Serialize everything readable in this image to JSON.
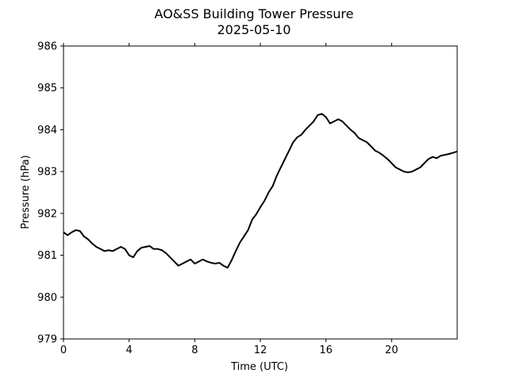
{
  "chart_data": {
    "type": "line",
    "title": "AO&SS Building Tower Pressure",
    "subtitle": "2025-05-10",
    "xlabel": "Time (UTC)",
    "ylabel": "Pressure (hPa)",
    "xlim": [
      0,
      24
    ],
    "ylim": [
      979,
      986
    ],
    "xticks": [
      0,
      4,
      8,
      12,
      16,
      20
    ],
    "xtick_labels": [
      "0",
      "4",
      "8",
      "12",
      "16",
      "20"
    ],
    "yticks": [
      979,
      980,
      981,
      982,
      983,
      984,
      985,
      986
    ],
    "ytick_labels": [
      "979",
      "980",
      "981",
      "982",
      "983",
      "984",
      "985",
      "986"
    ],
    "grid": false,
    "legend": "none",
    "series": [
      {
        "color": "#000000",
        "x": [
          0,
          0.25,
          0.5,
          0.75,
          1,
          1.25,
          1.5,
          1.75,
          2,
          2.25,
          2.5,
          2.75,
          3,
          3.25,
          3.5,
          3.75,
          4,
          4.25,
          4.5,
          4.75,
          5,
          5.25,
          5.5,
          5.75,
          6,
          6.25,
          6.5,
          6.75,
          7,
          7.25,
          7.5,
          7.75,
          8,
          8.25,
          8.5,
          8.75,
          9,
          9.25,
          9.5,
          9.75,
          10,
          10.25,
          10.5,
          10.75,
          11,
          11.25,
          11.5,
          11.75,
          12,
          12.25,
          12.5,
          12.75,
          13,
          13.25,
          13.5,
          13.75,
          14,
          14.25,
          14.5,
          14.75,
          15,
          15.25,
          15.5,
          15.75,
          16,
          16.25,
          16.5,
          16.75,
          17,
          17.25,
          17.5,
          17.75,
          18,
          18.25,
          18.5,
          18.75,
          19,
          19.25,
          19.5,
          19.75,
          20,
          20.25,
          20.5,
          20.75,
          21,
          21.25,
          21.5,
          21.75,
          22,
          22.25,
          22.5,
          22.75,
          23,
          23.25,
          23.5,
          23.75,
          24
        ],
        "y": [
          981.55,
          981.48,
          981.55,
          981.6,
          981.58,
          981.45,
          981.38,
          981.28,
          981.2,
          981.15,
          981.1,
          981.12,
          981.1,
          981.15,
          981.2,
          981.15,
          981.0,
          980.95,
          981.1,
          981.18,
          981.2,
          981.22,
          981.15,
          981.15,
          981.12,
          981.05,
          980.95,
          980.85,
          980.75,
          980.8,
          980.85,
          980.9,
          980.8,
          980.85,
          980.9,
          980.85,
          980.82,
          980.8,
          980.82,
          980.75,
          980.7,
          980.88,
          981.1,
          981.3,
          981.45,
          981.6,
          981.85,
          981.98,
          982.15,
          982.3,
          982.5,
          982.65,
          982.9,
          983.1,
          983.3,
          983.5,
          983.7,
          983.82,
          983.88,
          984.0,
          984.1,
          984.2,
          984.35,
          984.38,
          984.3,
          984.15,
          984.2,
          984.25,
          984.2,
          984.1,
          984.0,
          983.92,
          983.8,
          983.75,
          983.7,
          983.6,
          983.5,
          983.45,
          983.38,
          983.3,
          983.2,
          983.1,
          983.05,
          983.0,
          982.98,
          983.0,
          983.05,
          983.1,
          983.2,
          983.3,
          983.35,
          983.32,
          983.38,
          983.4,
          983.42,
          983.45,
          983.48
        ]
      }
    ]
  }
}
